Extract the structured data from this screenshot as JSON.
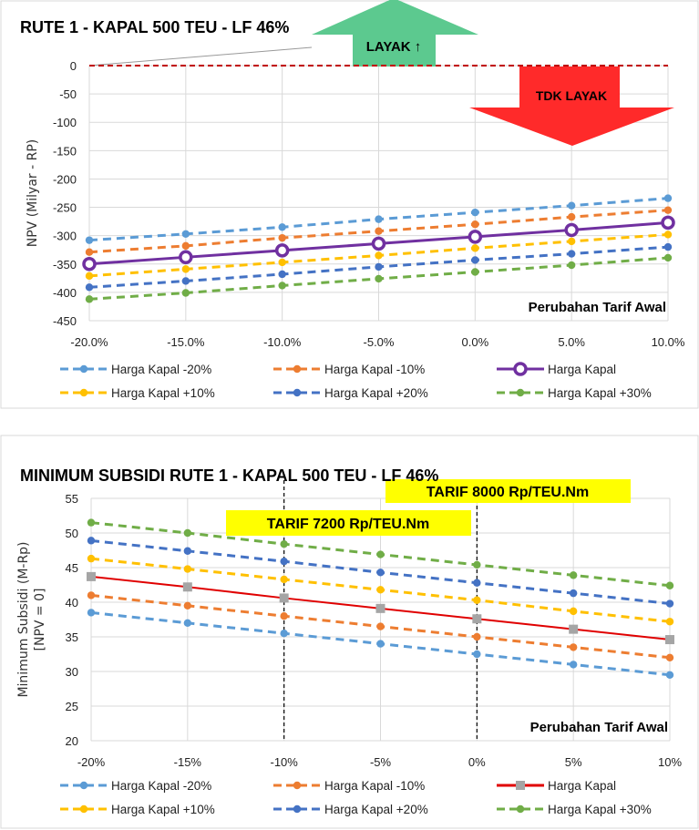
{
  "chart_data": [
    {
      "type": "line",
      "title": "RUTE 1 - KAPAL 500 TEU - LF 46%",
      "xlabel": "Perubahan Tarif Awal",
      "ylabel": "NPV (Milyar - RP)",
      "categories": [
        "-20.0%",
        "-15.0%",
        "-10.0%",
        "-5.0%",
        "0.0%",
        "5.0%",
        "10.0%"
      ],
      "ylim": [
        -450,
        0
      ],
      "yticks": [
        0,
        -50,
        -100,
        -150,
        -200,
        -250,
        -300,
        -350,
        -400,
        -450
      ],
      "grid": true,
      "legend": "bottom",
      "annotations": {
        "layak": "LAYAK ↑",
        "tdk_layak": "TDK LAYAK",
        "layak_color": "#5CC98F",
        "tdk_layak_color": "#FF2A2A",
        "zero_line_color": "#C00000"
      },
      "series": [
        {
          "name": "Harga Kapal -20%",
          "color": "#5B9BD5",
          "style": "dashed",
          "marker": "circle",
          "values": [
            -308,
            -297,
            -285,
            -271,
            -259,
            -247,
            -234
          ]
        },
        {
          "name": "Harga Kapal -10%",
          "color": "#ED7D31",
          "style": "dashed",
          "marker": "circle",
          "values": [
            -329,
            -318,
            -304,
            -292,
            -280,
            -267,
            -255
          ]
        },
        {
          "name": "Harga Kapal",
          "color": "#7030A0",
          "style": "solid",
          "marker": "ring",
          "values": [
            -350,
            -338,
            -326,
            -314,
            -302,
            -290,
            -277
          ]
        },
        {
          "name": "Harga Kapal +10%",
          "color": "#FFC000",
          "style": "dashed",
          "marker": "circle",
          "values": [
            -371,
            -359,
            -347,
            -335,
            -322,
            -310,
            -298
          ]
        },
        {
          "name": "Harga Kapal +20%",
          "color": "#4472C4",
          "style": "dashed",
          "marker": "circle",
          "values": [
            -391,
            -380,
            -368,
            -355,
            -343,
            -332,
            -320
          ]
        },
        {
          "name": "Harga Kapal +30%",
          "color": "#70AD47",
          "style": "dashed",
          "marker": "circle",
          "values": [
            -412,
            -401,
            -388,
            -376,
            -364,
            -352,
            -339
          ]
        }
      ]
    },
    {
      "type": "line",
      "title": "MINIMUM  SUBSIDI RUTE 1 - KAPAL 500 TEU - LF 46%",
      "xlabel": "Perubahan Tarif Awal",
      "ylabel": "Minimum Subsidi (M-Rp)",
      "ylabel2": "[NPV = 0]",
      "categories": [
        "-20%",
        "-15%",
        "-10%",
        "-5%",
        "0%",
        "5%",
        "10%"
      ],
      "ylim": [
        20,
        55
      ],
      "yticks": [
        55,
        50,
        45,
        40,
        35,
        30,
        25,
        20
      ],
      "grid": true,
      "legend": "bottom",
      "annotations": {
        "tarif_8000": "TARIF 8000 Rp/TEU.Nm",
        "tarif_7200": "TARIF 7200 Rp/TEU.Nm",
        "box_color": "#FFFF00",
        "vlines_at": [
          "-10%",
          "0%"
        ]
      },
      "series": [
        {
          "name": "Harga Kapal -20%",
          "color": "#5B9BD5",
          "style": "dashed",
          "marker": "circle",
          "values": [
            38.5,
            37.0,
            35.5,
            34.0,
            32.5,
            31.0,
            29.5
          ]
        },
        {
          "name": "Harga Kapal -10%",
          "color": "#ED7D31",
          "style": "dashed",
          "marker": "circle",
          "values": [
            41.0,
            39.5,
            38.0,
            36.5,
            35.0,
            33.5,
            32.0
          ]
        },
        {
          "name": "Harga Kapal",
          "color": "#E00000",
          "style": "solid",
          "marker": "square",
          "marker_color": "#A5A5A5",
          "values": [
            43.7,
            42.2,
            40.6,
            39.1,
            37.6,
            36.1,
            34.6
          ]
        },
        {
          "name": "Harga Kapal +10%",
          "color": "#FFC000",
          "style": "dashed",
          "marker": "circle",
          "values": [
            46.3,
            44.8,
            43.3,
            41.8,
            40.3,
            38.7,
            37.2
          ]
        },
        {
          "name": "Harga Kapal +20%",
          "color": "#4472C4",
          "style": "dashed",
          "marker": "circle",
          "values": [
            48.9,
            47.4,
            45.9,
            44.3,
            42.8,
            41.3,
            39.8
          ]
        },
        {
          "name": "Harga Kapal +30%",
          "color": "#70AD47",
          "style": "dashed",
          "marker": "circle",
          "values": [
            51.5,
            50.0,
            48.4,
            46.9,
            45.4,
            43.9,
            42.4
          ]
        }
      ]
    }
  ]
}
